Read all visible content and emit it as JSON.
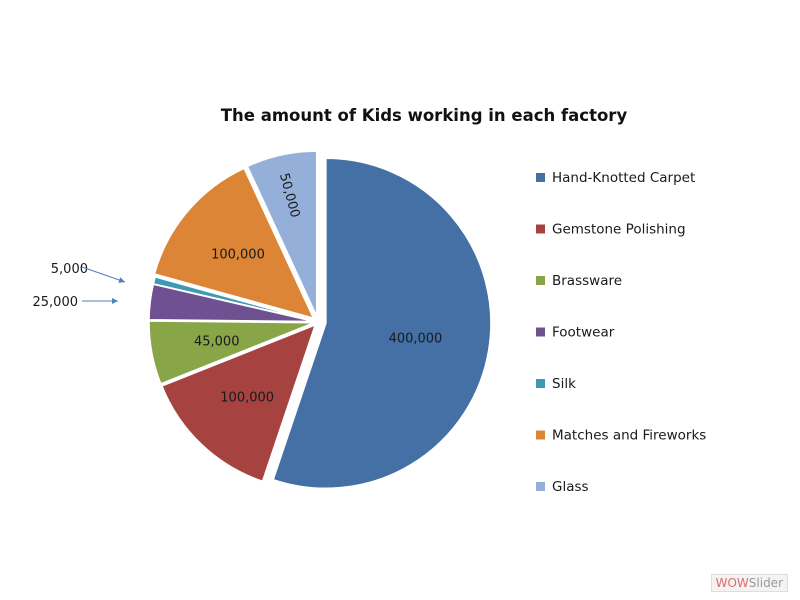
{
  "chart_data": {
    "type": "pie",
    "title": "The amount of Kids working in each factory",
    "slices": [
      {
        "name": "Hand-Knotted Carpet",
        "value": 400000,
        "label": "400,000",
        "color": "#4470A5"
      },
      {
        "name": "Gemstone Polishing",
        "value": 100000,
        "label": "100,000",
        "color": "#A64340"
      },
      {
        "name": "Brassware",
        "value": 45000,
        "label": "45,000",
        "color": "#88A548"
      },
      {
        "name": "Footwear",
        "value": 25000,
        "label": "25,000",
        "color": "#6F5191"
      },
      {
        "name": "Silk",
        "value": 5000,
        "label": "5,000",
        "color": "#3C9AB2"
      },
      {
        "name": "Matches and Fireworks",
        "value": 100000,
        "label": "100,000",
        "color": "#DC8536"
      },
      {
        "name": "Glass",
        "value": 50000,
        "label": "50,000",
        "color": "#95B0D8"
      }
    ],
    "legend_position": "right"
  },
  "watermark": {
    "part_a": "WOW",
    "part_b": "Slider"
  }
}
